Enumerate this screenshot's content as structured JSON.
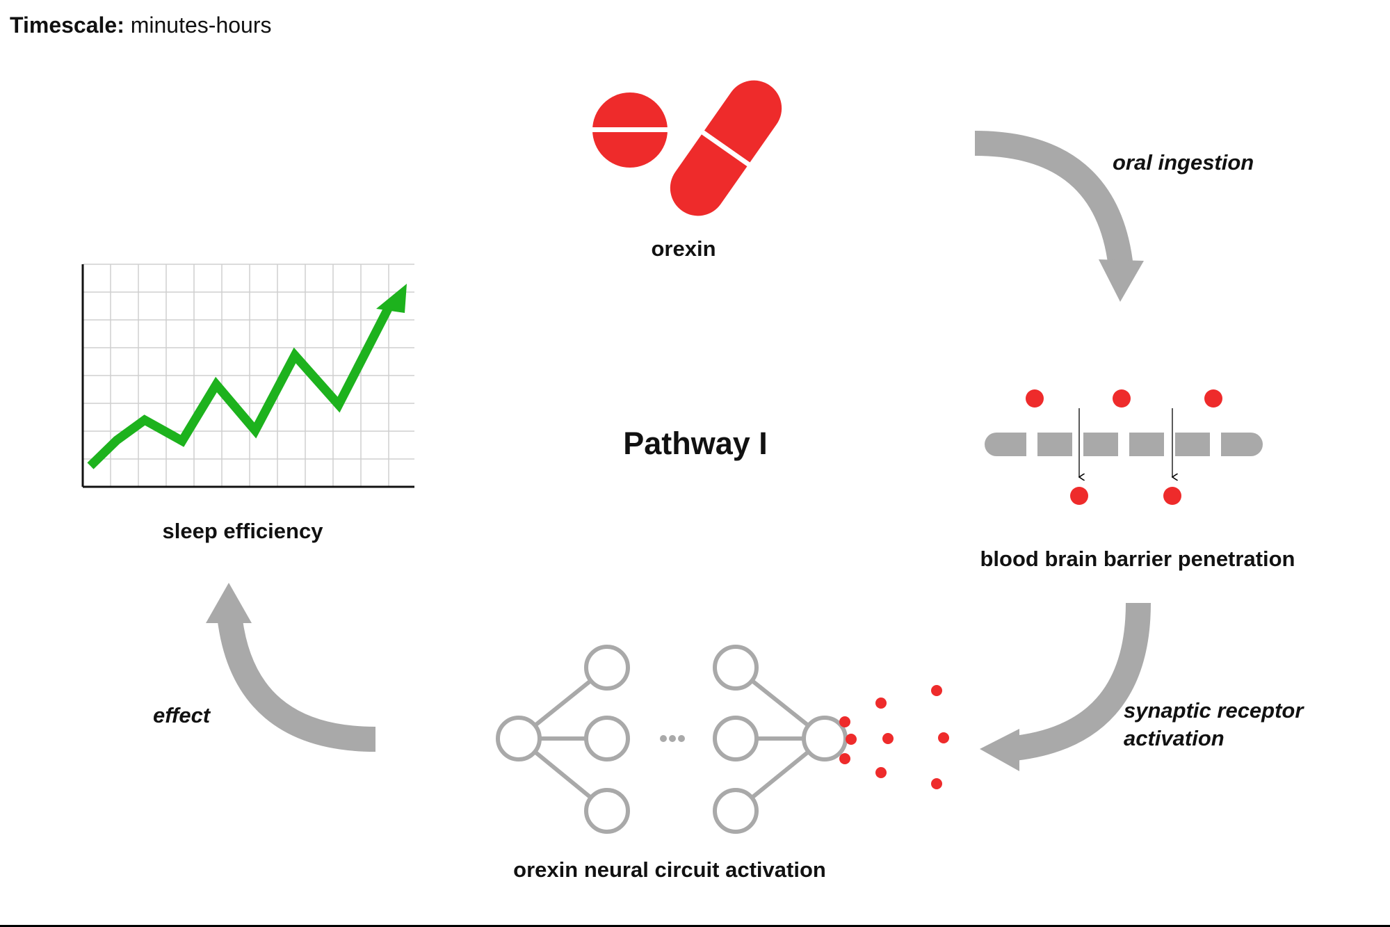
{
  "header": {
    "timescale_label": "Timescale:",
    "timescale_value": "minutes-hours"
  },
  "title": "Pathway I",
  "nodes": {
    "orexin": "orexin",
    "bbb": "blood brain barrier penetration",
    "circuit": "orexin neural circuit activation",
    "sleep": "sleep efficiency"
  },
  "arrows": {
    "oral": "oral ingestion",
    "synaptic_line1": "synaptic receptor",
    "synaptic_line2": "activation",
    "effect": "effect"
  },
  "colors": {
    "red": "#ee2b2b",
    "gray": "#a9a9a9",
    "green": "#1db21d",
    "grid": "#cfcfcf"
  },
  "icons": [
    "pill-icon",
    "capsule-icon",
    "blood-brain-barrier-icon",
    "neural-network-icon",
    "line-chart-icon"
  ]
}
